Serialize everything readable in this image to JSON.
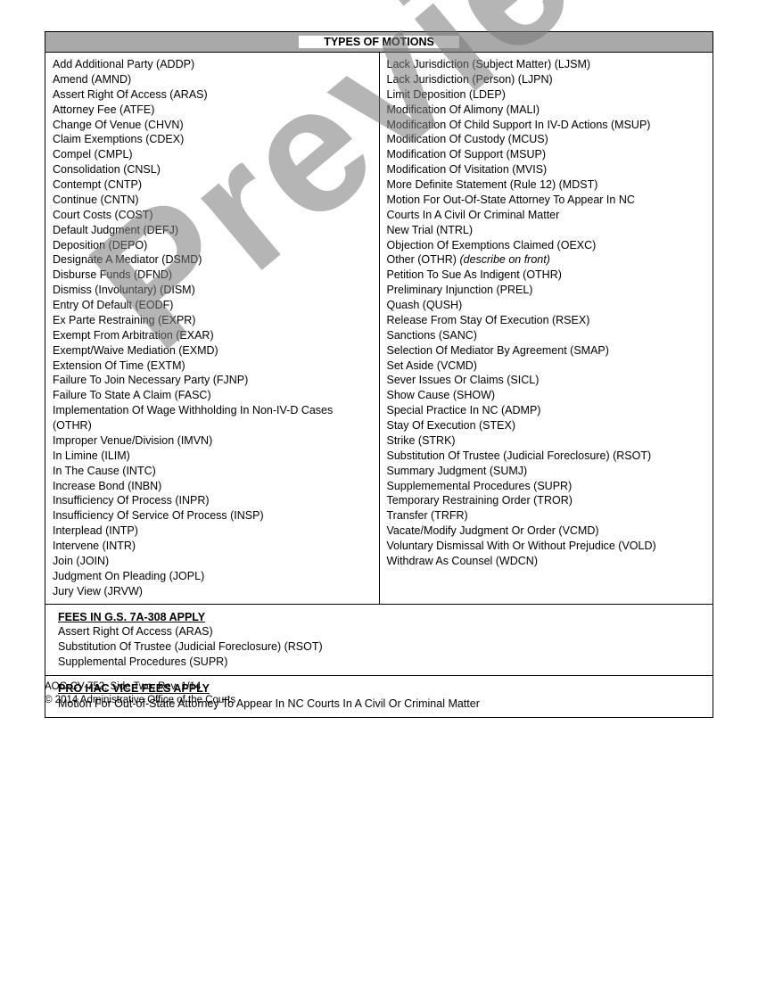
{
  "watermark_text": "Preview",
  "header_title": "TYPES OF MOTIONS",
  "motions_left": [
    "Add Additional Party (ADDP)",
    "Amend (AMND)",
    "Assert Right Of Access (ARAS)",
    "Attorney Fee (ATFE)",
    "Change Of Venue (CHVN)",
    "Claim Exemptions (CDEX)",
    "Compel (CMPL)",
    "Consolidation (CNSL)",
    "Contempt (CNTP)",
    "Continue (CNTN)",
    "Court Costs (COST)",
    "Default Judgment (DEFJ)",
    "Deposition (DEPO)",
    "Designate A Mediator (DSMD)",
    "Disburse Funds (DFND)",
    "Dismiss (Involuntary) (DISM)",
    "Entry Of Default (EODF)",
    "Ex Parte Restraining (EXPR)",
    "Exempt From Arbitration (EXAR)",
    "Exempt/Waive Mediation (EXMD)",
    "Extension Of Time (EXTM)",
    "Failure To Join Necessary Party (FJNP)",
    "Failure To State A Claim (FASC)",
    "Implementation Of Wage Withholding In Non-IV-D Cases (OTHR)",
    "Improper Venue/Division (IMVN)",
    "In Limine (ILIM)",
    "In The Cause (INTC)",
    "Increase Bond (INBN)",
    "Insufficiency Of Process (INPR)",
    "Insufficiency Of Service Of Process (INSP)",
    "Interplead (INTP)",
    "Intervene (INTR)",
    "Join (JOIN)",
    "Judgment On Pleading (JOPL)",
    "Jury View (JRVW)"
  ],
  "motions_right_complex": [
    {
      "text": "Lack Jurisdiction (Subject Matter) (LJSM)"
    },
    {
      "text": "Lack Jurisdiction (Person) (LJPN)"
    },
    {
      "text": "Limit Deposition (LDEP)"
    },
    {
      "text": "Modification Of Alimony (MALI)"
    },
    {
      "text": "Modification Of Child Support In IV-D Actions (MSUP)"
    },
    {
      "text": "Modification Of Custody (MCUS)"
    },
    {
      "text": "Modification Of Support (MSUP)"
    },
    {
      "text": "Modification Of Visitation (MVIS)"
    },
    {
      "text": "More Definite Statement (Rule 12) (MDST)"
    },
    {
      "text": "Motion For Out-Of-State Attorney To Appear In NC"
    },
    {
      "text": "Courts In A Civil Or Criminal Matter"
    },
    {
      "text": "New Trial (NTRL)"
    },
    {
      "text": "Objection Of Exemptions Claimed (OEXC)"
    },
    {
      "text": "Other (OTHR) ",
      "note": "(describe on front)"
    },
    {
      "text": "Petition To Sue As Indigent (OTHR)"
    },
    {
      "text": "Preliminary Injunction (PREL)"
    },
    {
      "text": "Quash (QUSH)"
    },
    {
      "text": "Release From Stay Of Execution (RSEX)"
    },
    {
      "text": "Sanctions (SANC)"
    },
    {
      "text": "Selection Of Mediator By Agreement (SMAP)"
    },
    {
      "text": "Set Aside (VCMD)"
    },
    {
      "text": "Sever Issues Or Claims (SICL)"
    },
    {
      "text": "Show Cause (SHOW)"
    },
    {
      "text": "Special Practice In NC (ADMP)"
    },
    {
      "text": "Stay Of Execution (STEX)"
    },
    {
      "text": "Strike (STRK)"
    },
    {
      "text": "Substitution Of Trustee (Judicial Foreclosure) (RSOT)"
    },
    {
      "text": "Summary Judgment   (SUMJ)"
    },
    {
      "text": "Supplememental Procedures (SUPR)"
    },
    {
      "text": "Temporary Restraining Order (TROR)"
    },
    {
      "text": "Transfer (TRFR)"
    },
    {
      "text": "Vacate/Modify Judgment Or Order (VCMD)"
    },
    {
      "text": "Voluntary Dismissal With Or Without Prejudice (VOLD)"
    },
    {
      "text": "Withdraw As Counsel (WDCN)"
    }
  ],
  "fees_section_title": "FEES IN G.S. 7A-308 APPLY",
  "fees_items": [
    "Assert Right Of Access (ARAS)",
    "Substitution Of Trustee (Judicial Foreclosure) (RSOT)",
    "Supplemental Procedures (SUPR)"
  ],
  "prohac_title": "PRO HAC VICE FEES APPLY",
  "prohac_text": "Motion For Out-of-State Attorney To Appear In NC Courts In A Civil Or Criminal Matter",
  "footer_line1": "AOC-CV-752, Side Two, Rev. 1/14",
  "footer_line2": "© 2014 Administrative Office of the Courts"
}
